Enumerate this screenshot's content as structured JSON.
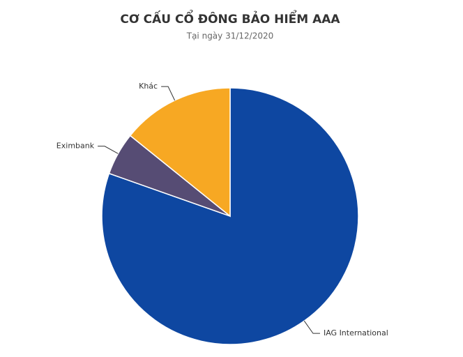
{
  "chart_data": {
    "type": "pie",
    "title": "CƠ CẤU CỔ ĐÔNG BẢO HIỂM AAA",
    "subtitle": "Tại ngày 31/12/2020",
    "categories": [
      "IAG International",
      "Eximbank",
      "Khác"
    ],
    "values": [
      80.4,
      5.4,
      14.2
    ],
    "colors": [
      "#0e47a1",
      "#564c74",
      "#f7a823"
    ]
  }
}
